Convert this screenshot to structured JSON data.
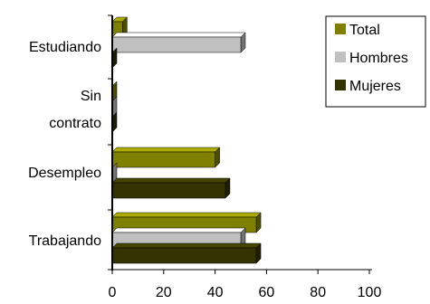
{
  "chart_data": {
    "type": "bar",
    "orientation": "horizontal",
    "style": "3d",
    "categories": [
      "Estudiando",
      [
        "Sin",
        "contrato"
      ],
      "Desempleo",
      "Trabajando"
    ],
    "series": [
      {
        "name": "Total",
        "color": "#808000",
        "values": [
          4,
          0,
          40,
          56
        ]
      },
      {
        "name": "Hombres",
        "color": "#c0c0c0",
        "values": [
          50,
          0,
          0,
          50
        ]
      },
      {
        "name": "Mujeres",
        "color": "#333300",
        "values": [
          0,
          0,
          44,
          56
        ]
      }
    ],
    "xlim": [
      0,
      100
    ],
    "xticks": [
      "0",
      "20",
      "40",
      "60",
      "80",
      "100"
    ],
    "grid": false,
    "legend_position": "top-right"
  }
}
